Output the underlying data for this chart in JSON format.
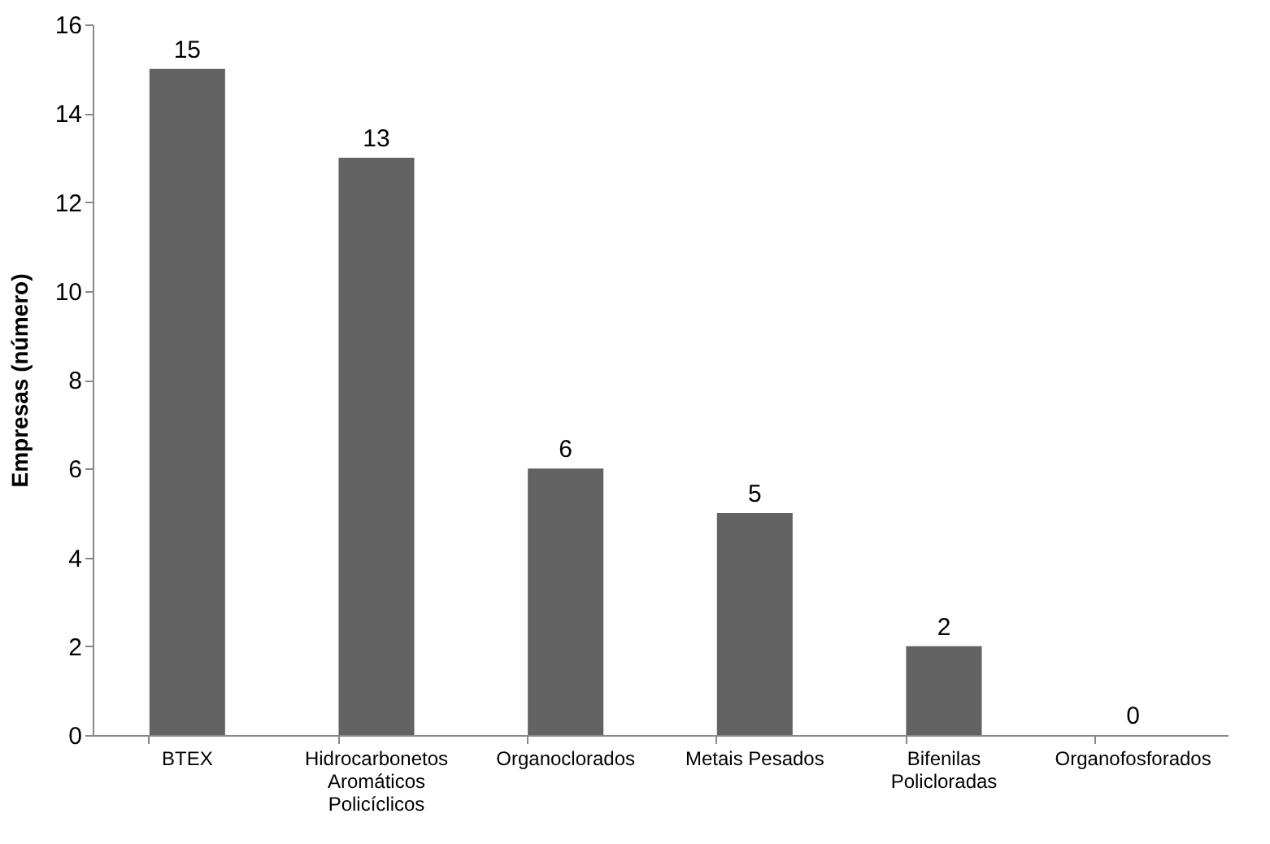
{
  "chart_data": {
    "type": "bar",
    "ylabel": "Empresas (número)",
    "categories": [
      "BTEX",
      "Hidrocarbonetos Aromáticos Policíclicos",
      "Organoclorados",
      "Metais Pesados",
      "Bifenilas Policloradas",
      "Organofosforados"
    ],
    "values": [
      15,
      13,
      6,
      5,
      2,
      0
    ],
    "color": "#636363",
    "ylim": [
      0,
      16
    ],
    "yticks": [
      0,
      2,
      4,
      6,
      8,
      10,
      12,
      14,
      16
    ],
    "grid": false,
    "data_labels": true
  }
}
